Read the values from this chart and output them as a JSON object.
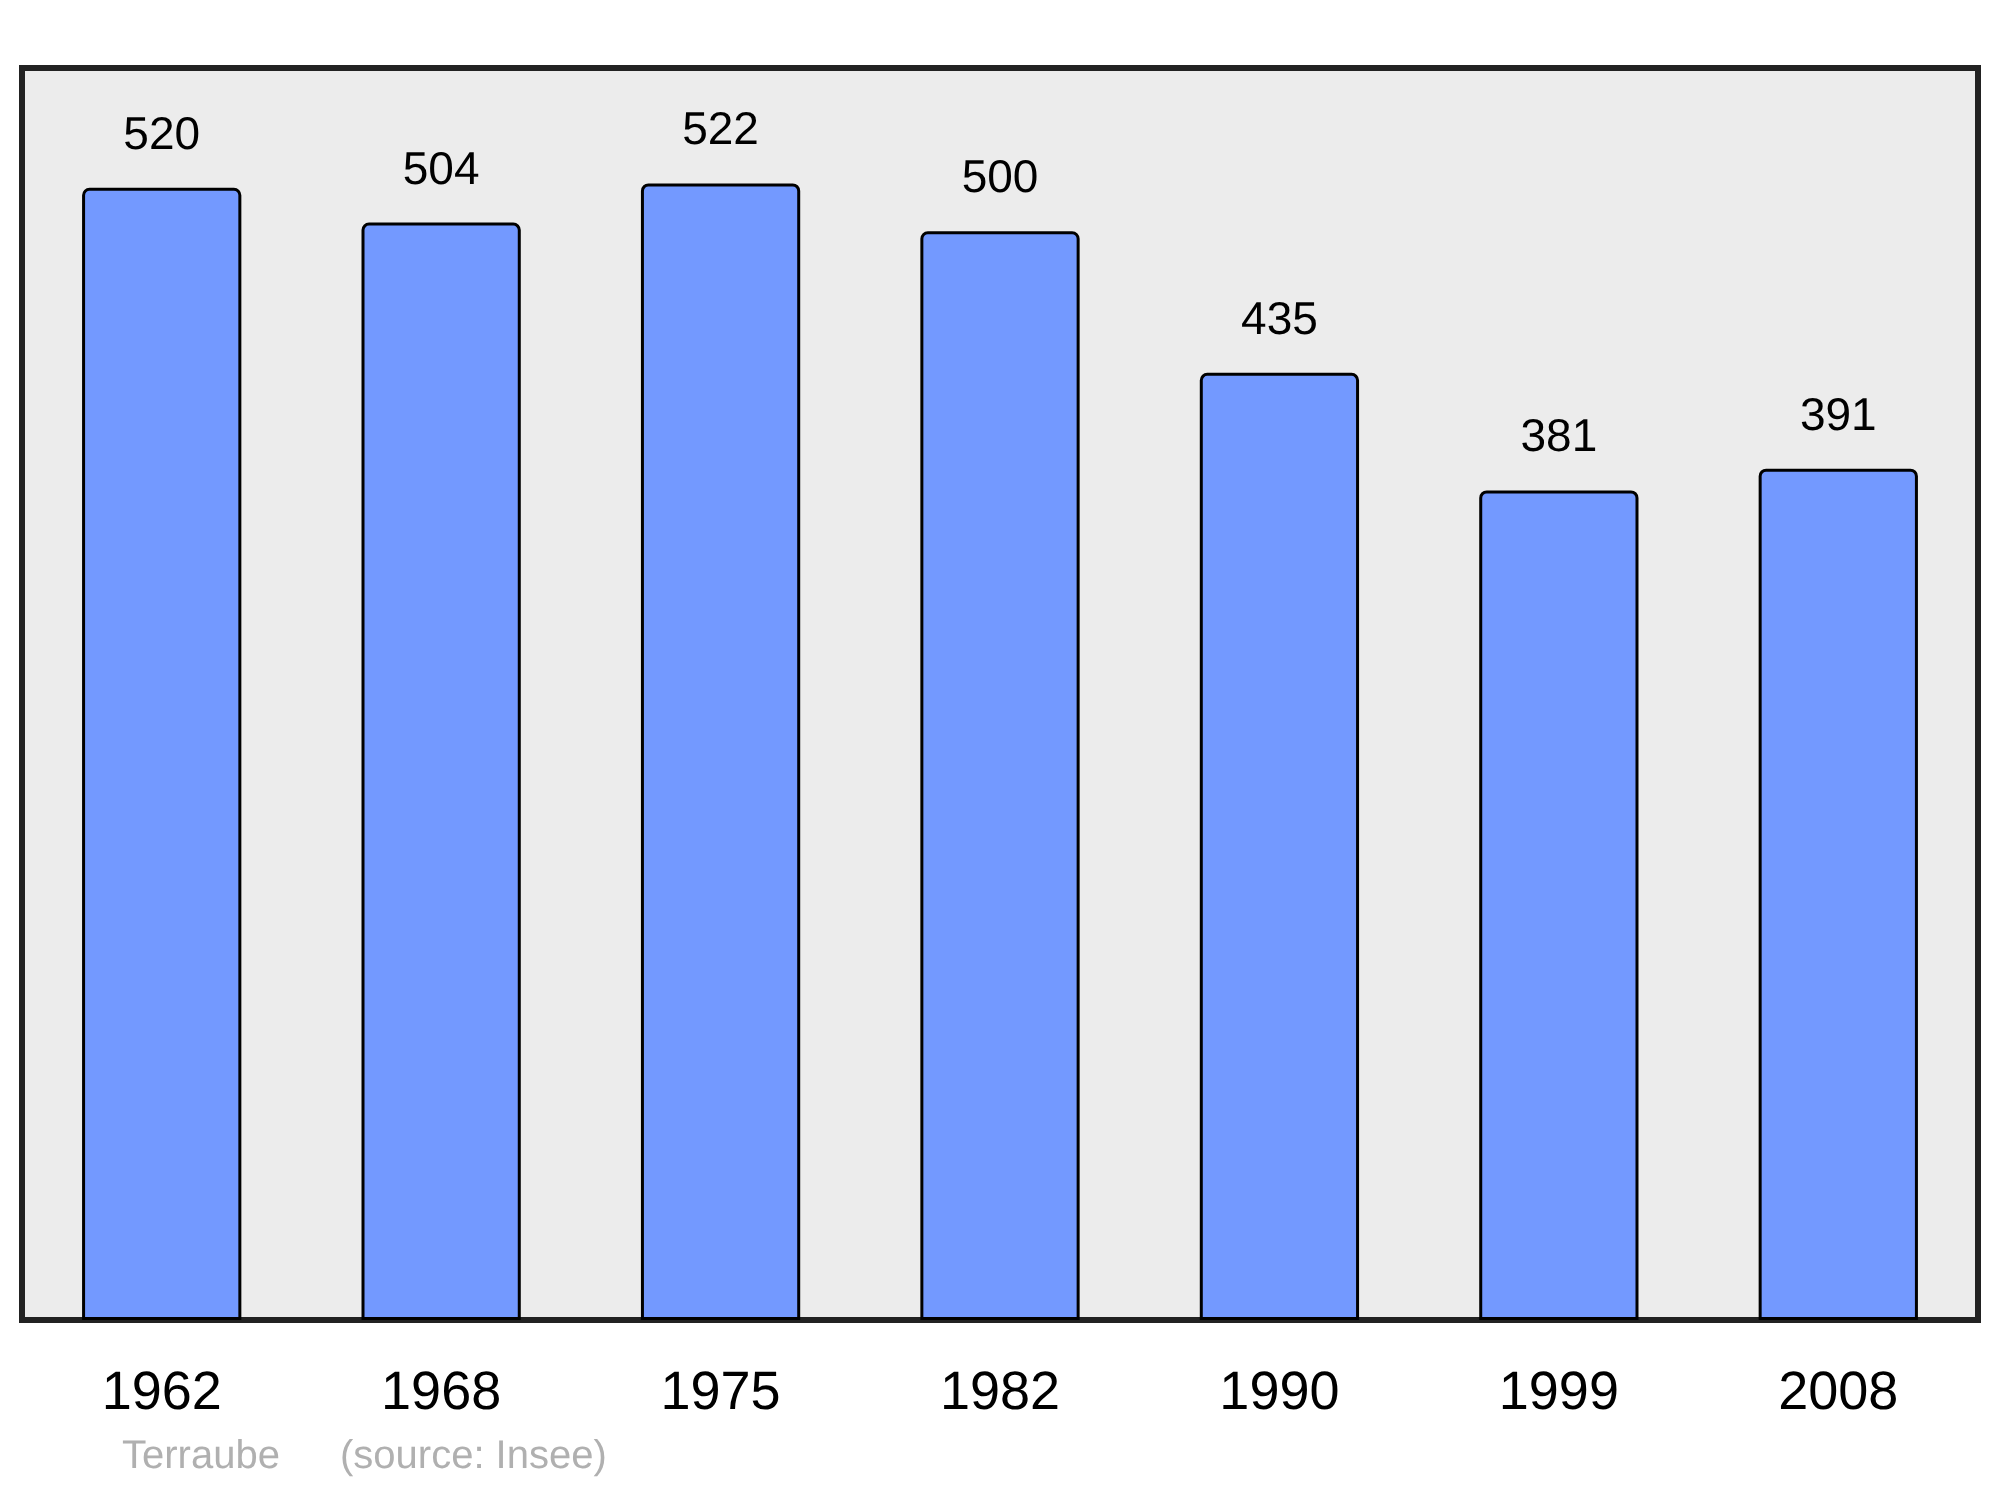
{
  "chart_data": {
    "type": "bar",
    "categories": [
      "1962",
      "1968",
      "1975",
      "1982",
      "1990",
      "1999",
      "2008"
    ],
    "values": [
      520,
      504,
      522,
      500,
      435,
      381,
      391
    ],
    "color": "#7399ff",
    "ylim": [
      0,
      575
    ],
    "data_labels": true,
    "tick_labels": "x",
    "annotations": [
      "Terraube",
      "(source: Insee)"
    ]
  }
}
